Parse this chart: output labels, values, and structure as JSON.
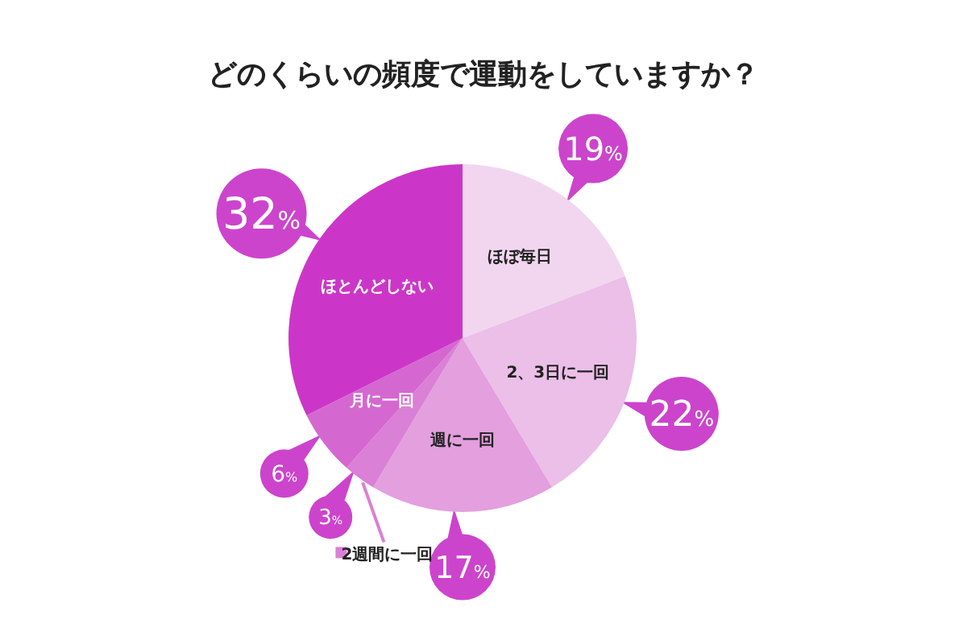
{
  "chart_data": {
    "type": "pie",
    "title": "どのくらいの頻度で運動をしていますか？",
    "categories": [
      "ほぼ毎日",
      "2、3日に一回",
      "週に一回",
      "2週間に一回",
      "月に一回",
      "ほとんどしない"
    ],
    "values": [
      19,
      22,
      17,
      3,
      6,
      32
    ],
    "value_labels": [
      "19%",
      "22%",
      "17%",
      "3%",
      "6%",
      "32%"
    ],
    "colors": [
      "#f2d6f0",
      "#ebbfe8",
      "#e39fde",
      "#da80d6",
      "#d567d1",
      "#cc36c8"
    ]
  }
}
